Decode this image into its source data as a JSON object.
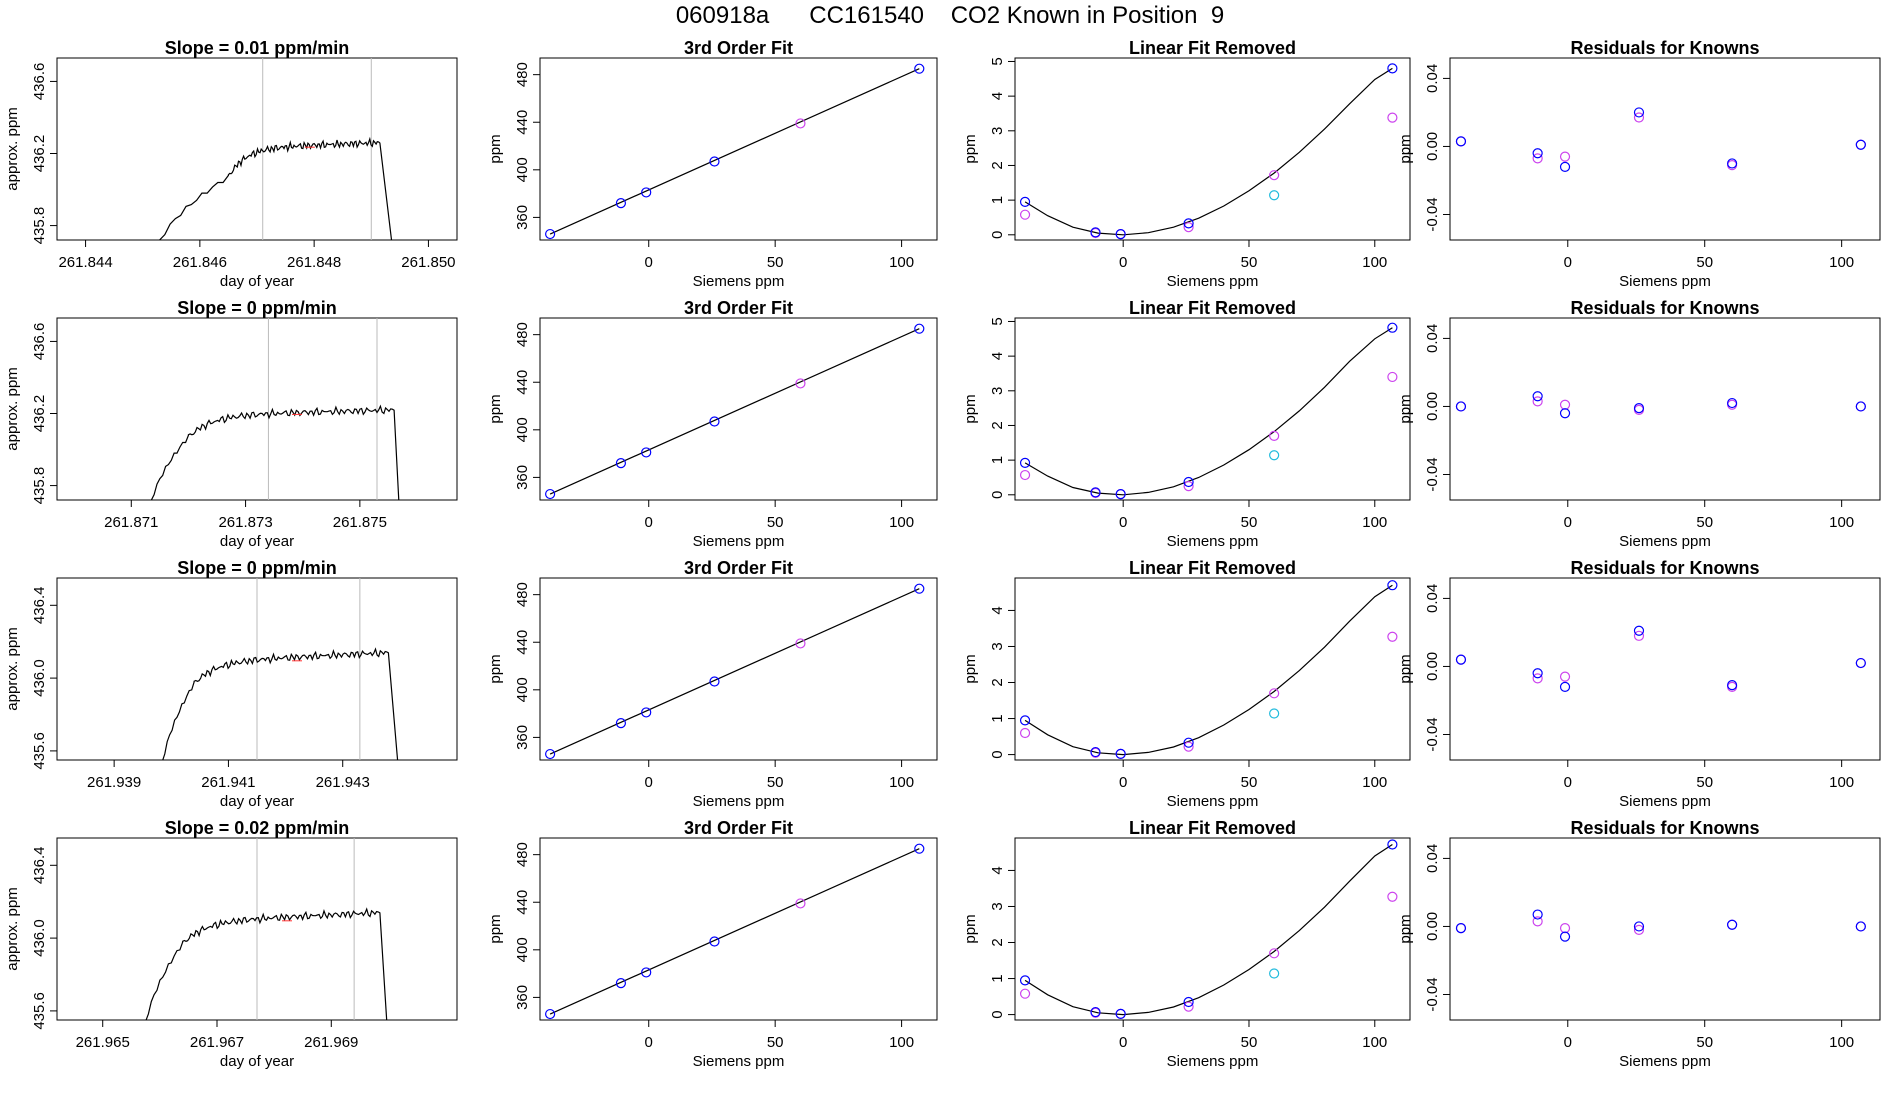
{
  "title": "060918a      CC161540    CO2 Known in Position  9",
  "colors": {
    "line": "#000000",
    "blue": "#0000ff",
    "magenta": "#cc44ee",
    "cyan": "#22bbdd",
    "vline": "#bbbbbb",
    "redbit": "#ff3333"
  },
  "chart_data": [
    {
      "type": "line",
      "title": "Slope =  0.01  ppm/min",
      "xlabel": "day of year",
      "ylabel": "approx. ppm",
      "xlim": [
        261.8435,
        261.8505
      ],
      "ylim": [
        435.72,
        436.73
      ],
      "xticks": [
        261.844,
        261.846,
        261.848,
        261.85
      ],
      "xtick_labels": [
        "261.844",
        "261.846",
        "261.848",
        "261.850"
      ],
      "yticks": [
        435.8,
        436.2,
        436.6
      ],
      "ytick_labels": [
        "435.8",
        "436.2",
        "436.6"
      ],
      "vlines": [
        261.8471,
        261.849
      ],
      "trace": {
        "x0": 261.8452,
        "rise_end": 261.8465,
        "plateau_start": 261.8467,
        "x_end": 261.84915,
        "x_drop": 261.8494,
        "base": 435.6,
        "y_start_rise": 436.07,
        "plateau": 436.23,
        "plateau_end": 436.26,
        "drop_to": 435.6
      }
    },
    {
      "type": "scatter",
      "title": "3rd Order Fit",
      "xlabel": "Siemens ppm",
      "ylabel": "ppm",
      "xlim": [
        -43,
        114
      ],
      "ylim": [
        341,
        494
      ],
      "xticks": [
        0,
        50,
        100
      ],
      "xtick_labels": [
        "0",
        "50",
        "100"
      ],
      "yticks": [
        360,
        400,
        440,
        480
      ],
      "ytick_labels": [
        "360",
        "400",
        "440",
        "480"
      ],
      "blue": [
        [
          -39,
          346
        ],
        [
          -11,
          372
        ],
        [
          -1,
          381
        ],
        [
          26,
          407
        ],
        [
          107,
          485
        ]
      ],
      "magenta": [
        [
          60,
          439
        ]
      ],
      "fit": [
        [
          -39,
          346
        ],
        [
          107,
          485
        ]
      ]
    },
    {
      "type": "scatter",
      "title": "Linear Fit Removed",
      "xlabel": "Siemens ppm",
      "ylabel": "ppm",
      "xlim": [
        -43,
        114
      ],
      "ylim": [
        -0.15,
        5.1
      ],
      "xticks": [
        0,
        50,
        100
      ],
      "xtick_labels": [
        "0",
        "50",
        "100"
      ],
      "yticks": [
        0,
        1,
        2,
        3,
        4,
        5
      ],
      "ytick_labels": [
        "0",
        "1",
        "2",
        "3",
        "4",
        "5"
      ],
      "blue": [
        [
          -39,
          0.95
        ],
        [
          -11,
          0.07
        ],
        [
          -1,
          0.02
        ],
        [
          26,
          0.33
        ],
        [
          107,
          4.8
        ]
      ],
      "magenta": [
        [
          -39,
          0.58
        ],
        [
          -11,
          0.05
        ],
        [
          -1,
          0.02
        ],
        [
          26,
          0.22
        ],
        [
          60,
          1.72
        ],
        [
          107,
          3.38
        ]
      ],
      "cyan": [
        [
          60,
          1.14
        ]
      ],
      "curve": {
        "x": [
          -39,
          -30,
          -20,
          -10,
          0,
          10,
          20,
          30,
          40,
          50,
          60,
          70,
          80,
          90,
          100,
          107
        ],
        "y": [
          0.95,
          0.55,
          0.22,
          0.05,
          0.0,
          0.06,
          0.22,
          0.48,
          0.83,
          1.27,
          1.78,
          2.38,
          3.05,
          3.78,
          4.48,
          4.8
        ]
      }
    },
    {
      "type": "scatter",
      "title": "Residuals for Knowns",
      "xlabel": "Siemens ppm",
      "ylabel": "ppm",
      "xlim": [
        -43,
        114
      ],
      "ylim": [
        -0.055,
        0.052
      ],
      "xticks": [
        0,
        50,
        100
      ],
      "xtick_labels": [
        "0",
        "50",
        "100"
      ],
      "yticks": [
        -0.04,
        0.0,
        0.04
      ],
      "ytick_labels": [
        "-0.04",
        "0.00",
        "0.04"
      ],
      "blue": [
        [
          -39,
          0.003
        ],
        [
          -11,
          -0.004
        ],
        [
          -1,
          -0.012
        ],
        [
          26,
          0.02
        ],
        [
          60,
          -0.01
        ],
        [
          107,
          0.001
        ]
      ],
      "magenta": [
        [
          -39,
          0.003
        ],
        [
          -11,
          -0.007
        ],
        [
          -1,
          -0.006
        ],
        [
          26,
          0.017
        ],
        [
          60,
          -0.011
        ],
        [
          107,
          0.001
        ]
      ]
    },
    {
      "type": "line",
      "title": "Slope =  0  ppm/min",
      "xlabel": "day of year",
      "ylabel": "approx. ppm",
      "xlim": [
        261.8697,
        261.8767
      ],
      "ylim": [
        435.72,
        436.73
      ],
      "xticks": [
        261.871,
        261.873,
        261.875
      ],
      "xtick_labels": [
        "261.871",
        "261.873",
        "261.875"
      ],
      "yticks": [
        435.8,
        436.2,
        436.6
      ],
      "ytick_labels": [
        "435.8",
        "436.2",
        "436.6"
      ],
      "vlines": [
        261.8734,
        261.8753
      ],
      "trace": {
        "x0": 261.8713,
        "rise_end": 261.872,
        "plateau_start": 261.8722,
        "x_end": 261.8756,
        "x_drop": 261.8757,
        "base": 435.6,
        "y_start_rise": 436.07,
        "plateau": 436.19,
        "plateau_end": 436.22,
        "drop_to": 435.6
      }
    },
    {
      "type": "scatter",
      "title": "3rd Order Fit",
      "xlabel": "Siemens ppm",
      "ylabel": "ppm",
      "xlim": [
        -43,
        114
      ],
      "ylim": [
        341,
        494
      ],
      "xticks": [
        0,
        50,
        100
      ],
      "xtick_labels": [
        "0",
        "50",
        "100"
      ],
      "yticks": [
        360,
        400,
        440,
        480
      ],
      "ytick_labels": [
        "360",
        "400",
        "440",
        "480"
      ],
      "blue": [
        [
          -39,
          346
        ],
        [
          -11,
          372
        ],
        [
          -1,
          381
        ],
        [
          26,
          407
        ],
        [
          107,
          485
        ]
      ],
      "magenta": [
        [
          60,
          439
        ]
      ],
      "fit": [
        [
          -39,
          346
        ],
        [
          107,
          485
        ]
      ]
    },
    {
      "type": "scatter",
      "title": "Linear Fit Removed",
      "xlabel": "Siemens ppm",
      "ylabel": "ppm",
      "xlim": [
        -43,
        114
      ],
      "ylim": [
        -0.15,
        5.1
      ],
      "xticks": [
        0,
        50,
        100
      ],
      "xtick_labels": [
        "0",
        "50",
        "100"
      ],
      "yticks": [
        0,
        1,
        2,
        3,
        4,
        5
      ],
      "ytick_labels": [
        "0",
        "1",
        "2",
        "3",
        "4",
        "5"
      ],
      "blue": [
        [
          -39,
          0.92
        ],
        [
          -11,
          0.07
        ],
        [
          -1,
          0.02
        ],
        [
          26,
          0.37
        ],
        [
          107,
          4.82
        ]
      ],
      "magenta": [
        [
          -39,
          0.57
        ],
        [
          -11,
          0.05
        ],
        [
          -1,
          0.02
        ],
        [
          26,
          0.25
        ],
        [
          60,
          1.7
        ],
        [
          107,
          3.4
        ]
      ],
      "cyan": [
        [
          60,
          1.14
        ]
      ],
      "curve": {
        "x": [
          -39,
          -30,
          -20,
          -10,
          0,
          10,
          20,
          30,
          40,
          50,
          60,
          70,
          80,
          90,
          100,
          107
        ],
        "y": [
          0.92,
          0.54,
          0.21,
          0.05,
          0.0,
          0.07,
          0.23,
          0.5,
          0.86,
          1.3,
          1.82,
          2.42,
          3.1,
          3.85,
          4.5,
          4.82
        ]
      }
    },
    {
      "type": "scatter",
      "title": "Residuals for Knowns",
      "xlabel": "Siemens ppm",
      "ylabel": "ppm",
      "xlim": [
        -43,
        114
      ],
      "ylim": [
        -0.055,
        0.052
      ],
      "xticks": [
        0,
        50,
        100
      ],
      "xtick_labels": [
        "0",
        "50",
        "100"
      ],
      "yticks": [
        -0.04,
        0.0,
        0.04
      ],
      "ytick_labels": [
        "-0.04",
        "0.00",
        "0.04"
      ],
      "blue": [
        [
          -39,
          0.0
        ],
        [
          -11,
          0.006
        ],
        [
          -1,
          -0.004
        ],
        [
          26,
          -0.001
        ],
        [
          60,
          0.002
        ],
        [
          107,
          0.0
        ]
      ],
      "magenta": [
        [
          -39,
          0.0
        ],
        [
          -11,
          0.003
        ],
        [
          -1,
          0.001
        ],
        [
          26,
          -0.002
        ],
        [
          60,
          0.001
        ],
        [
          107,
          0.0
        ]
      ]
    },
    {
      "type": "line",
      "title": "Slope =  0  ppm/min",
      "xlabel": "day of year",
      "ylabel": "approx. ppm",
      "xlim": [
        261.938,
        261.945
      ],
      "ylim": [
        435.55,
        436.55
      ],
      "xticks": [
        261.939,
        261.941,
        261.943
      ],
      "xtick_labels": [
        "261.939",
        "261.941",
        "261.943"
      ],
      "yticks": [
        435.6,
        436.0,
        436.4
      ],
      "ytick_labels": [
        "435.6",
        "436.0",
        "436.4"
      ],
      "vlines": [
        261.9415,
        261.9433
      ],
      "trace": {
        "x0": 261.9398,
        "rise_end": 261.9404,
        "plateau_start": 261.9406,
        "x_end": 261.9438,
        "x_drop": 261.944,
        "base": 435.4,
        "y_start_rise": 435.97,
        "plateau": 436.09,
        "plateau_end": 436.14,
        "drop_to": 435.4
      }
    },
    {
      "type": "scatter",
      "title": "3rd Order Fit",
      "xlabel": "Siemens ppm",
      "ylabel": "ppm",
      "xlim": [
        -43,
        114
      ],
      "ylim": [
        341,
        494
      ],
      "xticks": [
        0,
        50,
        100
      ],
      "xtick_labels": [
        "0",
        "50",
        "100"
      ],
      "yticks": [
        360,
        400,
        440,
        480
      ],
      "ytick_labels": [
        "360",
        "400",
        "440",
        "480"
      ],
      "blue": [
        [
          -39,
          346
        ],
        [
          -11,
          372
        ],
        [
          -1,
          381
        ],
        [
          26,
          407
        ],
        [
          107,
          485
        ]
      ],
      "magenta": [
        [
          60,
          439
        ]
      ],
      "fit": [
        [
          -39,
          346
        ],
        [
          107,
          485
        ]
      ]
    },
    {
      "type": "scatter",
      "title": "Linear Fit Removed",
      "xlabel": "Siemens ppm",
      "ylabel": "ppm",
      "xlim": [
        -43,
        114
      ],
      "ylim": [
        -0.15,
        4.9
      ],
      "xticks": [
        0,
        50,
        100
      ],
      "xtick_labels": [
        "0",
        "50",
        "100"
      ],
      "yticks": [
        0,
        1,
        2,
        3,
        4
      ],
      "ytick_labels": [
        "0",
        "1",
        "2",
        "3",
        "4"
      ],
      "blue": [
        [
          -39,
          0.95
        ],
        [
          -11,
          0.07
        ],
        [
          -1,
          0.02
        ],
        [
          26,
          0.33
        ],
        [
          107,
          4.7
        ]
      ],
      "magenta": [
        [
          -39,
          0.6
        ],
        [
          -11,
          0.05
        ],
        [
          -1,
          0.02
        ],
        [
          26,
          0.22
        ],
        [
          60,
          1.7
        ],
        [
          107,
          3.27
        ]
      ],
      "cyan": [
        [
          60,
          1.14
        ]
      ],
      "curve": {
        "x": [
          -39,
          -30,
          -20,
          -10,
          0,
          10,
          20,
          30,
          40,
          50,
          60,
          70,
          80,
          90,
          100,
          107
        ],
        "y": [
          0.95,
          0.55,
          0.22,
          0.05,
          0.0,
          0.06,
          0.21,
          0.47,
          0.82,
          1.25,
          1.75,
          2.33,
          2.98,
          3.7,
          4.38,
          4.7
        ]
      }
    },
    {
      "type": "scatter",
      "title": "Residuals for Knowns",
      "xlabel": "Siemens ppm",
      "ylabel": "ppm",
      "xlim": [
        -43,
        114
      ],
      "ylim": [
        -0.055,
        0.052
      ],
      "xticks": [
        0,
        50,
        100
      ],
      "xtick_labels": [
        "0",
        "50",
        "100"
      ],
      "yticks": [
        -0.04,
        0.0,
        0.04
      ],
      "ytick_labels": [
        "-0.04",
        "0.00",
        "0.04"
      ],
      "blue": [
        [
          -39,
          0.004
        ],
        [
          -11,
          -0.004
        ],
        [
          -1,
          -0.012
        ],
        [
          26,
          0.021
        ],
        [
          60,
          -0.011
        ],
        [
          107,
          0.002
        ]
      ],
      "magenta": [
        [
          -39,
          0.004
        ],
        [
          -11,
          -0.007
        ],
        [
          -1,
          -0.006
        ],
        [
          26,
          0.018
        ],
        [
          60,
          -0.012
        ],
        [
          107,
          0.002
        ]
      ]
    },
    {
      "type": "line",
      "title": "Slope =  0.02  ppm/min",
      "xlabel": "day of year",
      "ylabel": "approx. ppm",
      "xlim": [
        261.9642,
        261.9712
      ],
      "ylim": [
        435.55,
        436.55
      ],
      "xticks": [
        261.965,
        261.967,
        261.969
      ],
      "xtick_labels": [
        "261.965",
        "261.967",
        "261.969"
      ],
      "yticks": [
        435.6,
        436.0,
        436.4
      ],
      "ytick_labels": [
        "435.6",
        "436.0",
        "436.4"
      ],
      "vlines": [
        261.9677,
        261.9694
      ],
      "trace": {
        "x0": 261.9657,
        "rise_end": 261.9664,
        "plateau_start": 261.9666,
        "x_end": 261.96985,
        "x_drop": 261.97,
        "base": 435.4,
        "y_start_rise": 435.97,
        "plateau": 436.09,
        "plateau_end": 436.14,
        "drop_to": 435.4
      }
    },
    {
      "type": "scatter",
      "title": "3rd Order Fit",
      "xlabel": "Siemens ppm",
      "ylabel": "ppm",
      "xlim": [
        -43,
        114
      ],
      "ylim": [
        341,
        494
      ],
      "xticks": [
        0,
        50,
        100
      ],
      "xtick_labels": [
        "0",
        "50",
        "100"
      ],
      "yticks": [
        360,
        400,
        440,
        480
      ],
      "ytick_labels": [
        "360",
        "400",
        "440",
        "480"
      ],
      "blue": [
        [
          -39,
          346
        ],
        [
          -11,
          372
        ],
        [
          -1,
          381
        ],
        [
          26,
          407
        ],
        [
          107,
          485
        ]
      ],
      "magenta": [
        [
          60,
          439
        ]
      ],
      "fit": [
        [
          -39,
          346
        ],
        [
          107,
          485
        ]
      ]
    },
    {
      "type": "scatter",
      "title": "Linear Fit Removed",
      "xlabel": "Siemens ppm",
      "ylabel": "ppm",
      "xlim": [
        -43,
        114
      ],
      "ylim": [
        -0.15,
        4.9
      ],
      "xticks": [
        0,
        50,
        100
      ],
      "xtick_labels": [
        "0",
        "50",
        "100"
      ],
      "yticks": [
        0,
        1,
        2,
        3,
        4
      ],
      "ytick_labels": [
        "0",
        "1",
        "2",
        "3",
        "4"
      ],
      "blue": [
        [
          -39,
          0.95
        ],
        [
          -11,
          0.07
        ],
        [
          -1,
          0.02
        ],
        [
          26,
          0.35
        ],
        [
          107,
          4.72
        ]
      ],
      "magenta": [
        [
          -39,
          0.58
        ],
        [
          -11,
          0.05
        ],
        [
          -1,
          0.02
        ],
        [
          26,
          0.22
        ],
        [
          60,
          1.7
        ],
        [
          107,
          3.27
        ]
      ],
      "cyan": [
        [
          60,
          1.14
        ]
      ],
      "curve": {
        "x": [
          -39,
          -30,
          -20,
          -10,
          0,
          10,
          20,
          30,
          40,
          50,
          60,
          70,
          80,
          90,
          100,
          107
        ],
        "y": [
          0.95,
          0.55,
          0.22,
          0.05,
          0.0,
          0.06,
          0.21,
          0.47,
          0.82,
          1.25,
          1.75,
          2.33,
          2.98,
          3.7,
          4.4,
          4.72
        ]
      }
    },
    {
      "type": "scatter",
      "title": "Residuals for Knowns",
      "xlabel": "Siemens ppm",
      "ylabel": "ppm",
      "xlim": [
        -43,
        114
      ],
      "ylim": [
        -0.055,
        0.052
      ],
      "xticks": [
        0,
        50,
        100
      ],
      "xtick_labels": [
        "0",
        "50",
        "100"
      ],
      "yticks": [
        -0.04,
        0.0,
        0.04
      ],
      "ytick_labels": [
        "-0.04",
        "0.00",
        "0.04"
      ],
      "blue": [
        [
          -39,
          -0.001
        ],
        [
          -11,
          0.007
        ],
        [
          -1,
          -0.006
        ],
        [
          26,
          0.0
        ],
        [
          60,
          0.001
        ],
        [
          107,
          0.0
        ]
      ],
      "magenta": [
        [
          -39,
          -0.001
        ],
        [
          -11,
          0.003
        ],
        [
          -1,
          -0.001
        ],
        [
          26,
          -0.002
        ],
        [
          60,
          0.001
        ],
        [
          107,
          0.0
        ]
      ]
    }
  ]
}
